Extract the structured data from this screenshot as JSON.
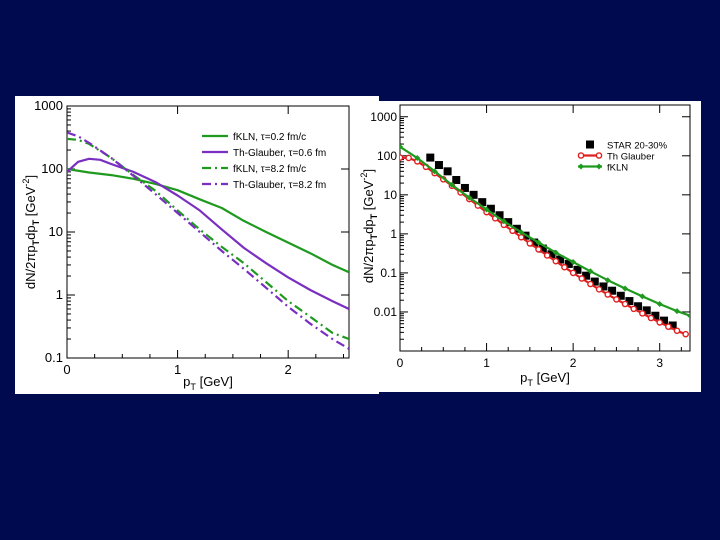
{
  "slide": {
    "background": "#000a4e"
  },
  "chart_data": [
    {
      "type": "line",
      "panel": "left",
      "xlabel_main": "p",
      "xlabel_sub": "T",
      "xlabel_rest": " [GeV]",
      "ylabel": "dN/2πpTdpT [GeV-2]",
      "ylabel_parts": [
        "dN/2πp",
        "T",
        "dp",
        "T",
        " [GeV",
        "-2",
        "]"
      ],
      "xlim": [
        0,
        2.55
      ],
      "ylim": [
        0.1,
        1000
      ],
      "yscale": "log",
      "xticks": [
        "0",
        "1",
        "2"
      ],
      "yticks": [
        "0.1",
        "1",
        "10",
        "100",
        "1000"
      ],
      "xtick_values": [
        0,
        1,
        2
      ],
      "ytick_values": [
        0.1,
        1,
        10,
        100,
        1000
      ],
      "legend_location": "top-right",
      "series": [
        {
          "name": "fKLN, τ=0.2 fm/c",
          "label_parts": [
            "fKLN, ",
            "τ",
            "=0.2 fm/c"
          ],
          "color": "#1f9a1f",
          "style": "solid",
          "x": [
            0.0,
            0.2,
            0.4,
            0.6,
            0.8,
            1.0,
            1.2,
            1.4,
            1.6,
            1.8,
            2.0,
            2.2,
            2.4,
            2.55
          ],
          "y": [
            100,
            88,
            80,
            70,
            58,
            46,
            33,
            24,
            15,
            10,
            6.8,
            4.6,
            3.0,
            2.3
          ]
        },
        {
          "name": "Th-Glauber, τ=0.6 fm",
          "label_parts": [
            "Th-Glauber, ",
            "τ",
            "=0.6 fm"
          ],
          "color": "#7a2fc0",
          "style": "solid",
          "x": [
            0.0,
            0.1,
            0.2,
            0.3,
            0.4,
            0.6,
            0.8,
            1.0,
            1.2,
            1.4,
            1.6,
            1.8,
            2.0,
            2.2,
            2.4,
            2.55
          ],
          "y": [
            90,
            130,
            145,
            140,
            120,
            90,
            62,
            38,
            22,
            11,
            5.6,
            3.2,
            1.9,
            1.2,
            0.8,
            0.6
          ]
        },
        {
          "name": "fKLN, τ=8.2 fm/c",
          "label_parts": [
            "fKLN, ",
            "τ",
            "=8.2 fm/c"
          ],
          "color": "#1f9a1f",
          "style": "dashdot",
          "x": [
            0.0,
            0.1,
            0.2,
            0.4,
            0.6,
            0.8,
            1.0,
            1.2,
            1.4,
            1.6,
            1.8,
            2.0,
            2.2,
            2.4,
            2.55
          ],
          "y": [
            300,
            290,
            250,
            150,
            80,
            45,
            22,
            11,
            5.8,
            3.2,
            1.6,
            0.8,
            0.45,
            0.25,
            0.2
          ]
        },
        {
          "name": "Th-Glauber, τ=8.2 fm",
          "label_parts": [
            "Th-Glauber, ",
            "τ",
            "=8.2 fm"
          ],
          "color": "#7a2fc0",
          "style": "dashdot",
          "x": [
            0.0,
            0.1,
            0.2,
            0.4,
            0.6,
            0.8,
            1.0,
            1.2,
            1.4,
            1.6,
            1.8,
            2.0,
            2.2,
            2.4,
            2.55
          ],
          "y": [
            380,
            330,
            260,
            150,
            78,
            40,
            20,
            10,
            5.0,
            2.6,
            1.3,
            0.65,
            0.35,
            0.2,
            0.14
          ]
        }
      ]
    },
    {
      "type": "line",
      "panel": "right",
      "xlabel_main": "p",
      "xlabel_sub": "T",
      "xlabel_rest": " [GeV]",
      "ylabel": "dN/2πpTdpT [GeV-2]",
      "ylabel_parts": [
        "dN/2πp",
        "T",
        "dp",
        "T",
        " [GeV",
        "-2",
        "]"
      ],
      "xlim": [
        0,
        3.35
      ],
      "ylim": [
        0.001,
        2000
      ],
      "yscale": "log",
      "xticks": [
        "0",
        "1",
        "2",
        "3"
      ],
      "yticks": [
        "0.01",
        "0.1",
        "1",
        "10",
        "100",
        "1000"
      ],
      "xtick_values": [
        0,
        1,
        2,
        3
      ],
      "ytick_values": [
        0.01,
        0.1,
        1,
        10,
        100,
        1000
      ],
      "legend_location": "top-right",
      "series": [
        {
          "name": "STAR 20-30%",
          "color": "#000000",
          "style": "markers",
          "marker": "square",
          "x": [
            0.35,
            0.45,
            0.55,
            0.65,
            0.75,
            0.85,
            0.95,
            1.05,
            1.15,
            1.25,
            1.35,
            1.45,
            1.55,
            1.65,
            1.75,
            1.85,
            1.95,
            2.05,
            2.15,
            2.25,
            2.35,
            2.45,
            2.55,
            2.65,
            2.75,
            2.85,
            2.95,
            3.05,
            3.15
          ],
          "y": [
            90,
            58,
            40,
            24,
            15,
            10,
            6.5,
            4.4,
            3.0,
            2.0,
            1.35,
            0.9,
            0.6,
            0.42,
            0.3,
            0.22,
            0.17,
            0.12,
            0.085,
            0.06,
            0.045,
            0.035,
            0.026,
            0.019,
            0.014,
            0.011,
            0.008,
            0.006,
            0.0045
          ]
        },
        {
          "name": "Th Glauber",
          "color": "#e02020",
          "style": "line-circles",
          "marker": "circle",
          "x": [
            0.0,
            0.1,
            0.2,
            0.3,
            0.4,
            0.5,
            0.6,
            0.7,
            0.8,
            0.9,
            1.0,
            1.1,
            1.2,
            1.3,
            1.4,
            1.5,
            1.6,
            1.7,
            1.8,
            1.9,
            2.0,
            2.1,
            2.2,
            2.3,
            2.4,
            2.5,
            2.6,
            2.7,
            2.8,
            2.9,
            3.0,
            3.1,
            3.2,
            3.3
          ],
          "y": [
            90,
            88,
            72,
            52,
            36,
            25,
            17,
            11.5,
            7.8,
            5.3,
            3.6,
            2.5,
            1.7,
            1.2,
            0.82,
            0.57,
            0.4,
            0.28,
            0.2,
            0.14,
            0.1,
            0.072,
            0.052,
            0.038,
            0.028,
            0.021,
            0.016,
            0.012,
            0.0092,
            0.007,
            0.0054,
            0.0042,
            0.0033,
            0.0027
          ]
        },
        {
          "name": "fKLN",
          "color": "#1f9a1f",
          "style": "line-diamonds",
          "marker": "diamond",
          "x": [
            0.0,
            0.2,
            0.4,
            0.6,
            0.8,
            1.0,
            1.2,
            1.4,
            1.6,
            1.8,
            2.0,
            2.2,
            2.4,
            2.6,
            2.8,
            3.0,
            3.2,
            3.35
          ],
          "y": [
            170,
            88,
            40,
            18,
            8.5,
            4.2,
            2.1,
            1.1,
            0.6,
            0.33,
            0.19,
            0.11,
            0.065,
            0.04,
            0.025,
            0.016,
            0.0105,
            0.008
          ]
        }
      ]
    }
  ]
}
